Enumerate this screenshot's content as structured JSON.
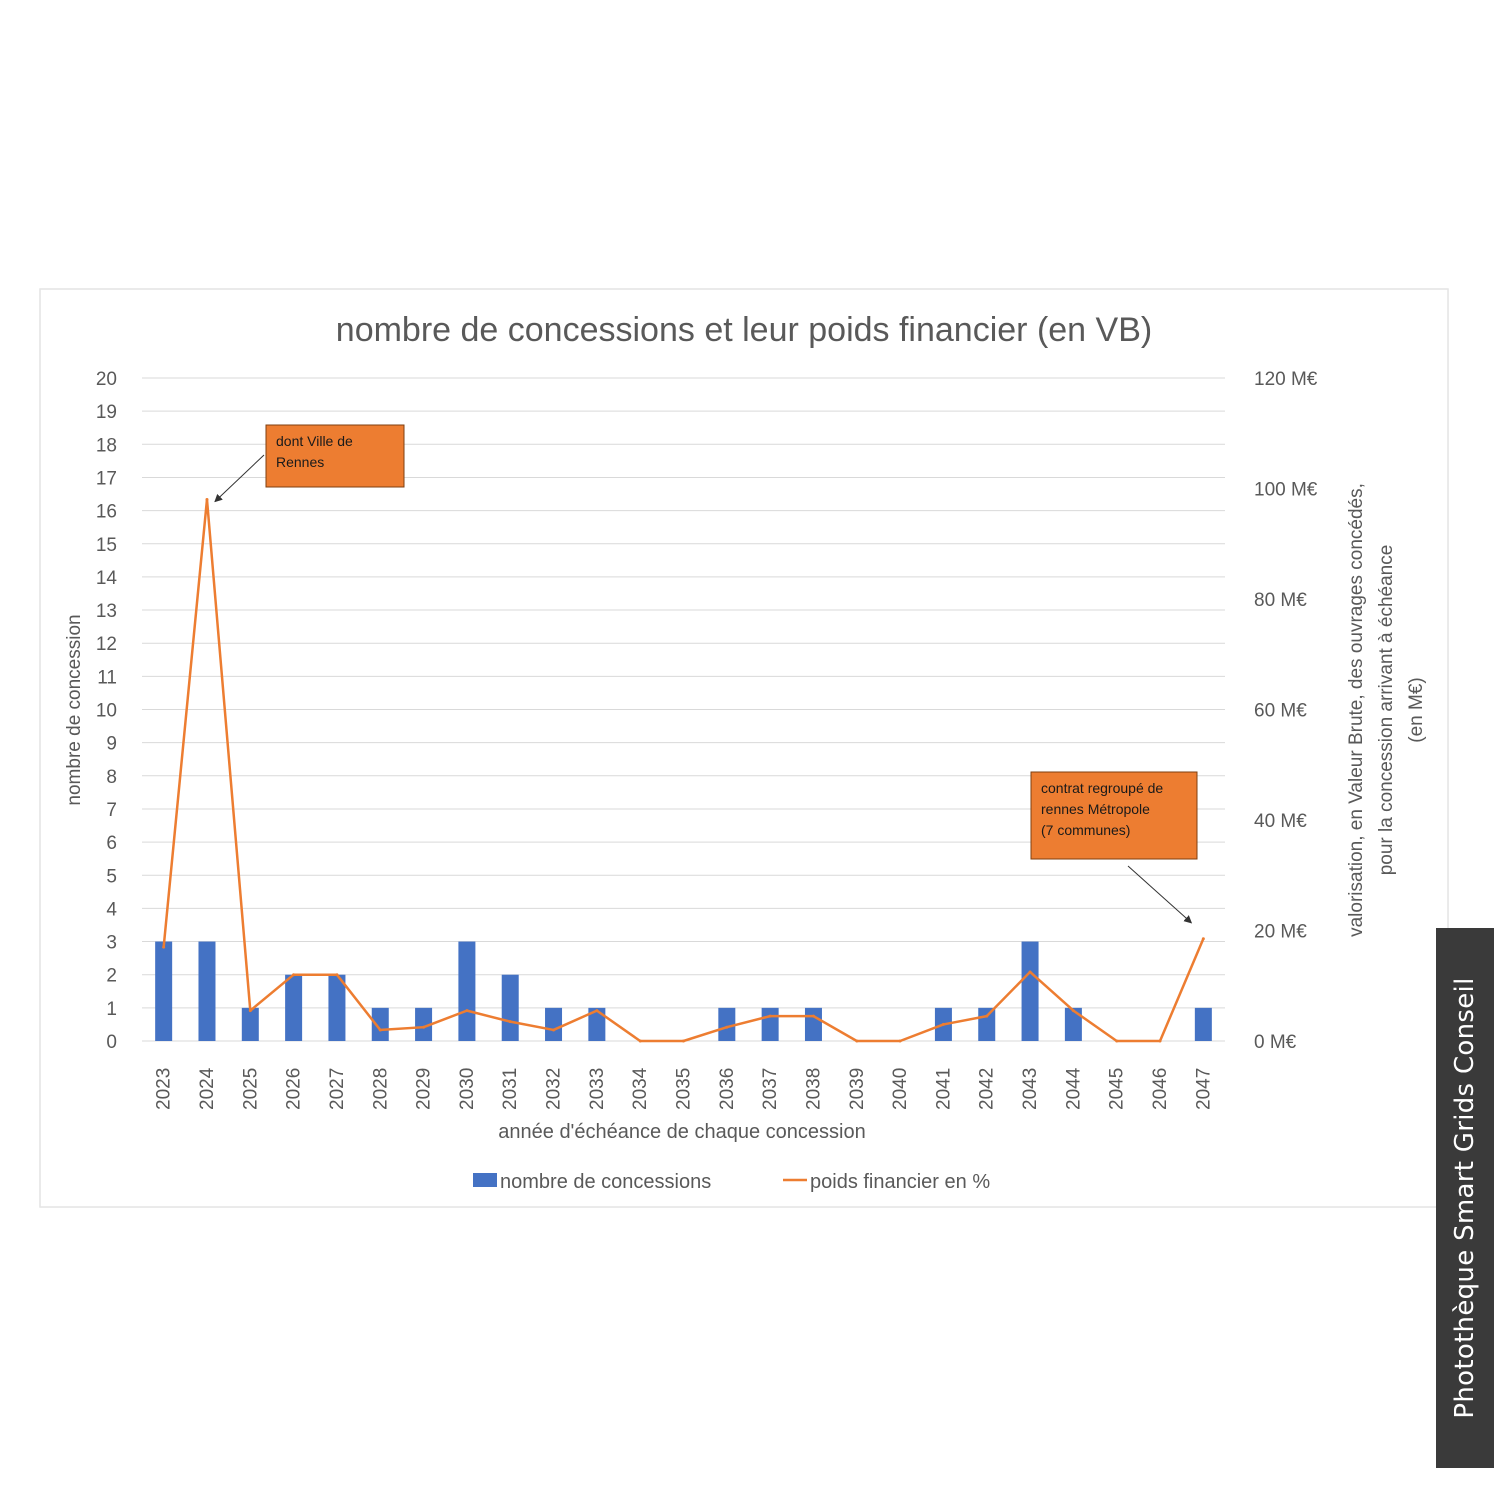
{
  "chart_data": {
    "type": "bar+line",
    "title": "nombre de concessions et leur poids financier (en VB)",
    "xlabel": "année d'échéance de chaque concession",
    "ylabel": "nombre de concession",
    "ylabel_right_lines": [
      "valorisation, en Valeur Brute, des ouvrages concédés,",
      "pour la concession arrivant à échéance",
      "(en M€)"
    ],
    "ylim": [
      0,
      20
    ],
    "ylim_right": [
      0,
      120
    ],
    "yticks": [
      "0",
      "1",
      "2",
      "3",
      "4",
      "5",
      "6",
      "7",
      "8",
      "9",
      "10",
      "11",
      "12",
      "13",
      "14",
      "15",
      "16",
      "17",
      "18",
      "19",
      "20"
    ],
    "yticks_right": [
      "0 M€",
      "20 M€",
      "40 M€",
      "60 M€",
      "80 M€",
      "100 M€",
      "120 M€"
    ],
    "grid": true,
    "legend_position": "bottom",
    "categories": [
      "2023",
      "2024",
      "2025",
      "2026",
      "2027",
      "2028",
      "2029",
      "2030",
      "2031",
      "2032",
      "2033",
      "2034",
      "2035",
      "2036",
      "2037",
      "2038",
      "2039",
      "2040",
      "2041",
      "2042",
      "2043",
      "2044",
      "2045",
      "2046",
      "2047"
    ],
    "series": [
      {
        "name": "nombre de concessions",
        "type": "bar",
        "axis": "left",
        "color": "#4472c4",
        "values": [
          3,
          3,
          1,
          2,
          2,
          1,
          1,
          3,
          2,
          1,
          1,
          0,
          0,
          1,
          1,
          1,
          0,
          0,
          1,
          1,
          3,
          1,
          0,
          0,
          1
        ]
      },
      {
        "name": "poids financier en %",
        "type": "line",
        "axis": "right",
        "color": "#ed7d31",
        "values": [
          17,
          98,
          5.5,
          12,
          12,
          2,
          2.5,
          5.5,
          3.5,
          2,
          5.5,
          0,
          0,
          2.5,
          4.5,
          4.5,
          0,
          0,
          3,
          4.5,
          12.5,
          5.5,
          0,
          0,
          18.5
        ]
      }
    ],
    "annotations": [
      {
        "lines": [
          "dont Ville de",
          "Rennes"
        ],
        "target_category": "2024"
      },
      {
        "lines": [
          "contrat regroupé de",
          "rennes Métropole",
          "(7 communes)"
        ],
        "target_category": "2047"
      }
    ]
  },
  "credit": {
    "text": "Photothèque  Smart Grids Conseil"
  },
  "colors": {
    "annotation_fill": "#ed7d31",
    "grid": "#d9d9d9",
    "text": "#595959",
    "credit_bg": "#3a3a3a"
  }
}
